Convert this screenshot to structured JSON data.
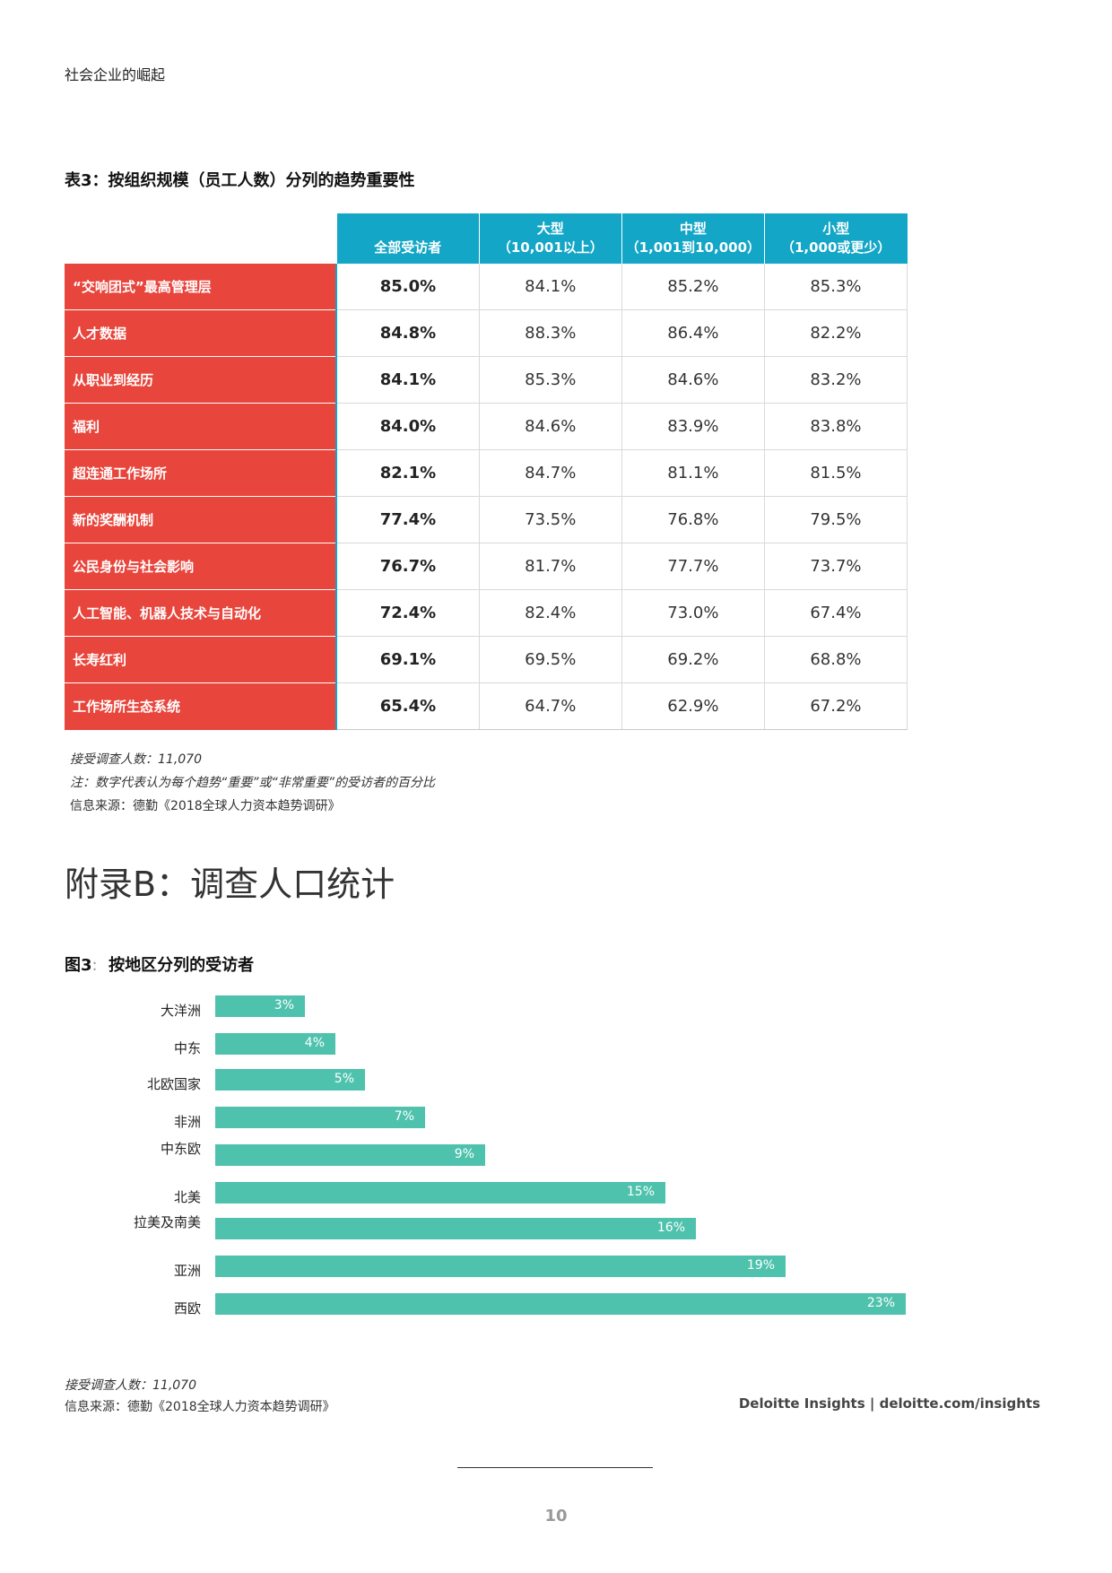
{
  "header": {
    "running_title": "社会企业的崛起"
  },
  "table": {
    "title": "表3：按组织规模（员工人数）分列的趋势重要性",
    "columns": [
      {
        "line1": "",
        "line2": "全部受访者"
      },
      {
        "line1": "大型",
        "line2": "（10,001以上）"
      },
      {
        "line1": "中型",
        "line2": "（1,001到10,000）"
      },
      {
        "line1": "小型",
        "line2": "（1,000或更少）"
      }
    ],
    "rows": [
      {
        "label": "“交响团式”最高管理层",
        "values": [
          "85.0%",
          "84.1%",
          "85.2%",
          "85.3%"
        ]
      },
      {
        "label": "人才数据",
        "values": [
          "84.8%",
          "88.3%",
          "86.4%",
          "82.2%"
        ]
      },
      {
        "label": "从职业到经历",
        "values": [
          "84.1%",
          "85.3%",
          "84.6%",
          "83.2%"
        ]
      },
      {
        "label": "福利",
        "values": [
          "84.0%",
          "84.6%",
          "83.9%",
          "83.8%"
        ]
      },
      {
        "label": "超连通工作场所",
        "values": [
          "82.1%",
          "84.7%",
          "81.1%",
          "81.5%"
        ]
      },
      {
        "label": "新的奖酬机制",
        "values": [
          "77.4%",
          "73.5%",
          "76.8%",
          "79.5%"
        ]
      },
      {
        "label": "公民身份与社会影响",
        "values": [
          "76.7%",
          "81.7%",
          "77.7%",
          "73.7%"
        ]
      },
      {
        "label": "人工智能、机器人技术与自动化",
        "values": [
          "72.4%",
          "82.4%",
          "73.0%",
          "67.4%"
        ]
      },
      {
        "label": "长寿红利",
        "values": [
          "69.1%",
          "69.5%",
          "69.2%",
          "68.8%"
        ]
      },
      {
        "label": "工作场所生态系统",
        "values": [
          "65.4%",
          "64.7%",
          "62.9%",
          "67.2%"
        ]
      }
    ],
    "notes": {
      "respondents": "接受调查人数：11,070",
      "note": "注：数字代表认为每个趋势“重要”或“非常重要”的受访者的百分比",
      "source": "信息来源：德勤《2018全球人力资本趋势调研》"
    }
  },
  "appendix": {
    "title": "附录B：调查人口统计"
  },
  "figure": {
    "title_prefix": "图3",
    "title_sep": ":",
    "title_text": "按地区分列的受访者",
    "respondents": "接受调查人数：11,070",
    "source": "信息来源：德勤《2018全球人力资本趋势调研》"
  },
  "chart_data": {
    "type": "bar",
    "orientation": "horizontal",
    "categories": [
      "大洋洲",
      "中东",
      "北欧国家",
      "非洲",
      "中东欧",
      "北美",
      "拉美及南美",
      "亚洲",
      "西欧"
    ],
    "values": [
      3,
      4,
      5,
      7,
      9,
      15,
      16,
      19,
      23
    ],
    "value_labels": [
      "3%",
      "4%",
      "5%",
      "7%",
      "9%",
      "15%",
      "16%",
      "19%",
      "23%"
    ],
    "bar_color": "#4fc2ad"
  },
  "footer": {
    "brand": "Deloitte Insights | deloitte.com/insights",
    "page_number": "10"
  },
  "colors": {
    "header_blue": "#13a6c6",
    "row_red": "#e8453c",
    "bar_teal": "#4fc2ad"
  }
}
